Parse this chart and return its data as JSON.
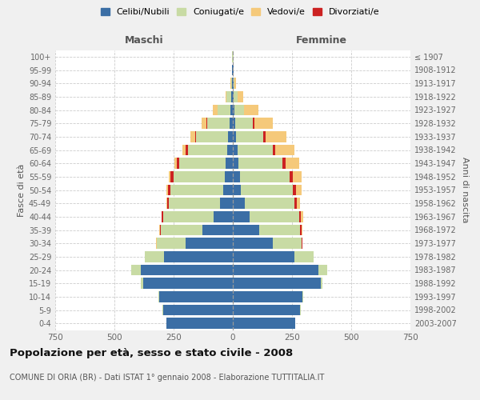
{
  "age_groups": [
    "0-4",
    "5-9",
    "10-14",
    "15-19",
    "20-24",
    "25-29",
    "30-34",
    "35-39",
    "40-44",
    "45-49",
    "50-54",
    "55-59",
    "60-64",
    "65-69",
    "70-74",
    "75-79",
    "80-84",
    "85-89",
    "90-94",
    "95-99",
    "100+"
  ],
  "birth_years": [
    "2003-2007",
    "1998-2002",
    "1993-1997",
    "1988-1992",
    "1983-1987",
    "1978-1982",
    "1973-1977",
    "1968-1972",
    "1963-1967",
    "1958-1962",
    "1953-1957",
    "1948-1952",
    "1943-1947",
    "1938-1942",
    "1933-1937",
    "1928-1932",
    "1923-1927",
    "1918-1922",
    "1913-1917",
    "1908-1912",
    "≤ 1907"
  ],
  "male": {
    "celibi": [
      280,
      295,
      310,
      380,
      390,
      290,
      200,
      130,
      80,
      55,
      40,
      35,
      30,
      25,
      20,
      14,
      9,
      7,
      3,
      2,
      1
    ],
    "coniugati": [
      0,
      1,
      3,
      10,
      40,
      80,
      120,
      175,
      215,
      215,
      225,
      215,
      195,
      165,
      135,
      95,
      55,
      20,
      5,
      2,
      1
    ],
    "vedovi": [
      0,
      0,
      0,
      0,
      0,
      0,
      1,
      1,
      2,
      4,
      5,
      8,
      10,
      15,
      20,
      20,
      20,
      5,
      1,
      0,
      0
    ],
    "divorziati": [
      0,
      0,
      0,
      0,
      0,
      1,
      2,
      4,
      5,
      8,
      10,
      12,
      10,
      8,
      5,
      3,
      0,
      0,
      0,
      0,
      0
    ]
  },
  "female": {
    "nubili": [
      265,
      285,
      295,
      370,
      360,
      260,
      170,
      110,
      70,
      50,
      35,
      30,
      25,
      20,
      15,
      10,
      7,
      5,
      3,
      2,
      1
    ],
    "coniugate": [
      0,
      1,
      3,
      10,
      40,
      80,
      120,
      175,
      210,
      210,
      220,
      210,
      185,
      150,
      115,
      75,
      40,
      15,
      5,
      2,
      1
    ],
    "vedove": [
      0,
      0,
      0,
      0,
      0,
      1,
      2,
      4,
      8,
      15,
      25,
      40,
      60,
      80,
      90,
      80,
      60,
      25,
      5,
      1,
      0
    ],
    "divorziate": [
      0,
      0,
      0,
      0,
      0,
      1,
      3,
      5,
      8,
      10,
      12,
      12,
      12,
      10,
      8,
      5,
      0,
      0,
      0,
      0,
      0
    ]
  },
  "colors": {
    "celibi_nubili": "#3b6ea5",
    "coniugati": "#c8dba4",
    "vedovi": "#f5c97a",
    "divorziati": "#cc2222"
  },
  "title": "Popolazione per età, sesso e stato civile - 2008",
  "subtitle": "COMUNE DI ORIA (BR) - Dati ISTAT 1° gennaio 2008 - Elaborazione TUTTITALIA.IT",
  "xlabel_left": "Maschi",
  "xlabel_right": "Femmine",
  "ylabel_left": "Fasce di età",
  "ylabel_right": "Anni di nascita",
  "xlim": 750,
  "bg_color": "#f0f0f0",
  "plot_bg_color": "#ffffff",
  "legend_labels": [
    "Celibi/Nubili",
    "Coniugati/e",
    "Vedovi/e",
    "Divorziati/e"
  ]
}
